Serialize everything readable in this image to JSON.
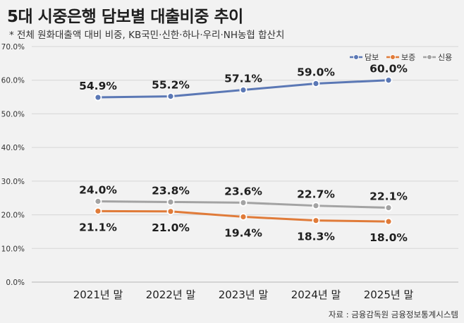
{
  "title": "5대 시중은행 담보별 대출비중 추이",
  "subtitle": "* 전체 원화대출액 대비 비중, KB국민·신한·하나·우리·NH농협 합산치",
  "source": "자료 : 금융감독원 금융정보통계시스템",
  "chart_data": {
    "type": "line",
    "title": "5대 시중은행 담보별 대출비중 추이",
    "xlabel": "",
    "ylabel": "",
    "ylim": [
      0,
      70
    ],
    "y_ticks": [
      "0.0%",
      "10.0%",
      "20.0%",
      "30.0%",
      "40.0%",
      "50.0%",
      "60.0%",
      "70.0%"
    ],
    "grid": true,
    "legend_position": "top-right",
    "categories": [
      "2021년 말",
      "2022년 말",
      "2023년 말",
      "2024년 말",
      "2025년 말"
    ],
    "series": [
      {
        "name": "담보",
        "color": "#5b78b5",
        "values": [
          54.9,
          55.2,
          57.1,
          59.0,
          60.0
        ],
        "labels": [
          "54.9%",
          "55.2%",
          "57.1%",
          "59.0%",
          "60.0%"
        ],
        "label_position": "above"
      },
      {
        "name": "보증",
        "color": "#e07b39",
        "values": [
          21.1,
          21.0,
          19.4,
          18.3,
          18.0
        ],
        "labels": [
          "21.1%",
          "21.0%",
          "19.4%",
          "18.3%",
          "18.0%"
        ],
        "label_position": "below"
      },
      {
        "name": "신용",
        "color": "#a3a3a3",
        "values": [
          24.0,
          23.8,
          23.6,
          22.7,
          22.1
        ],
        "labels": [
          "24.0%",
          "23.8%",
          "23.6%",
          "22.7%",
          "22.1%"
        ],
        "label_position": "above"
      }
    ]
  }
}
